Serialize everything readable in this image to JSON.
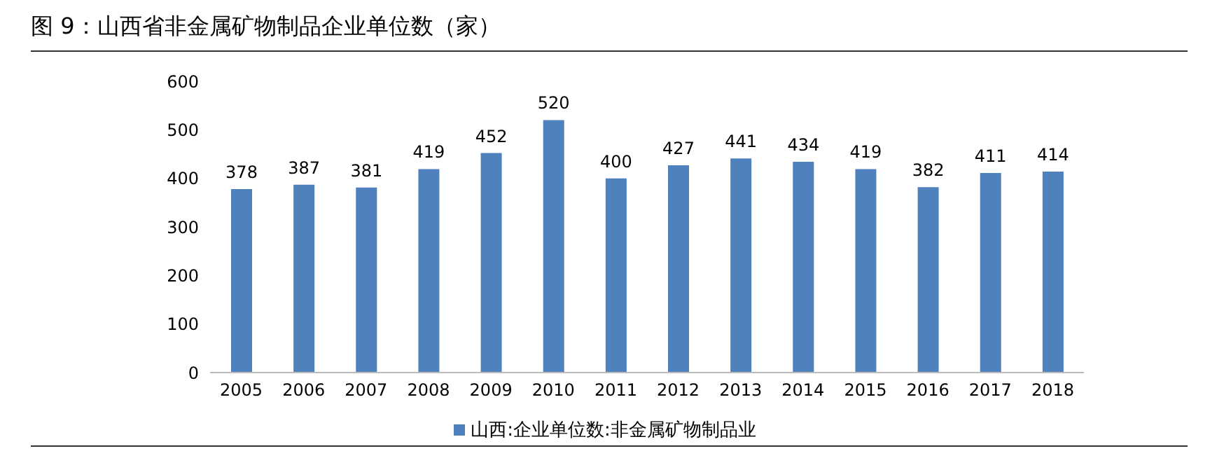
{
  "chart_data": {
    "type": "bar",
    "title": "图 9：山西省非金属矿物制品企业单位数（家）",
    "categories": [
      "2005",
      "2006",
      "2007",
      "2008",
      "2009",
      "2010",
      "2011",
      "2012",
      "2013",
      "2014",
      "2015",
      "2016",
      "2017",
      "2018"
    ],
    "series": [
      {
        "name": "山西:企业单位数:非金属矿物制品业",
        "color": "#4f81bd",
        "values": [
          378,
          387,
          381,
          419,
          452,
          520,
          400,
          427,
          441,
          434,
          419,
          382,
          411,
          414
        ]
      }
    ],
    "ylim": [
      0,
      600
    ],
    "yticks": [
      0,
      100,
      200,
      300,
      400,
      500,
      600
    ],
    "grid": false,
    "legend": "bottom",
    "data_labels": true
  }
}
